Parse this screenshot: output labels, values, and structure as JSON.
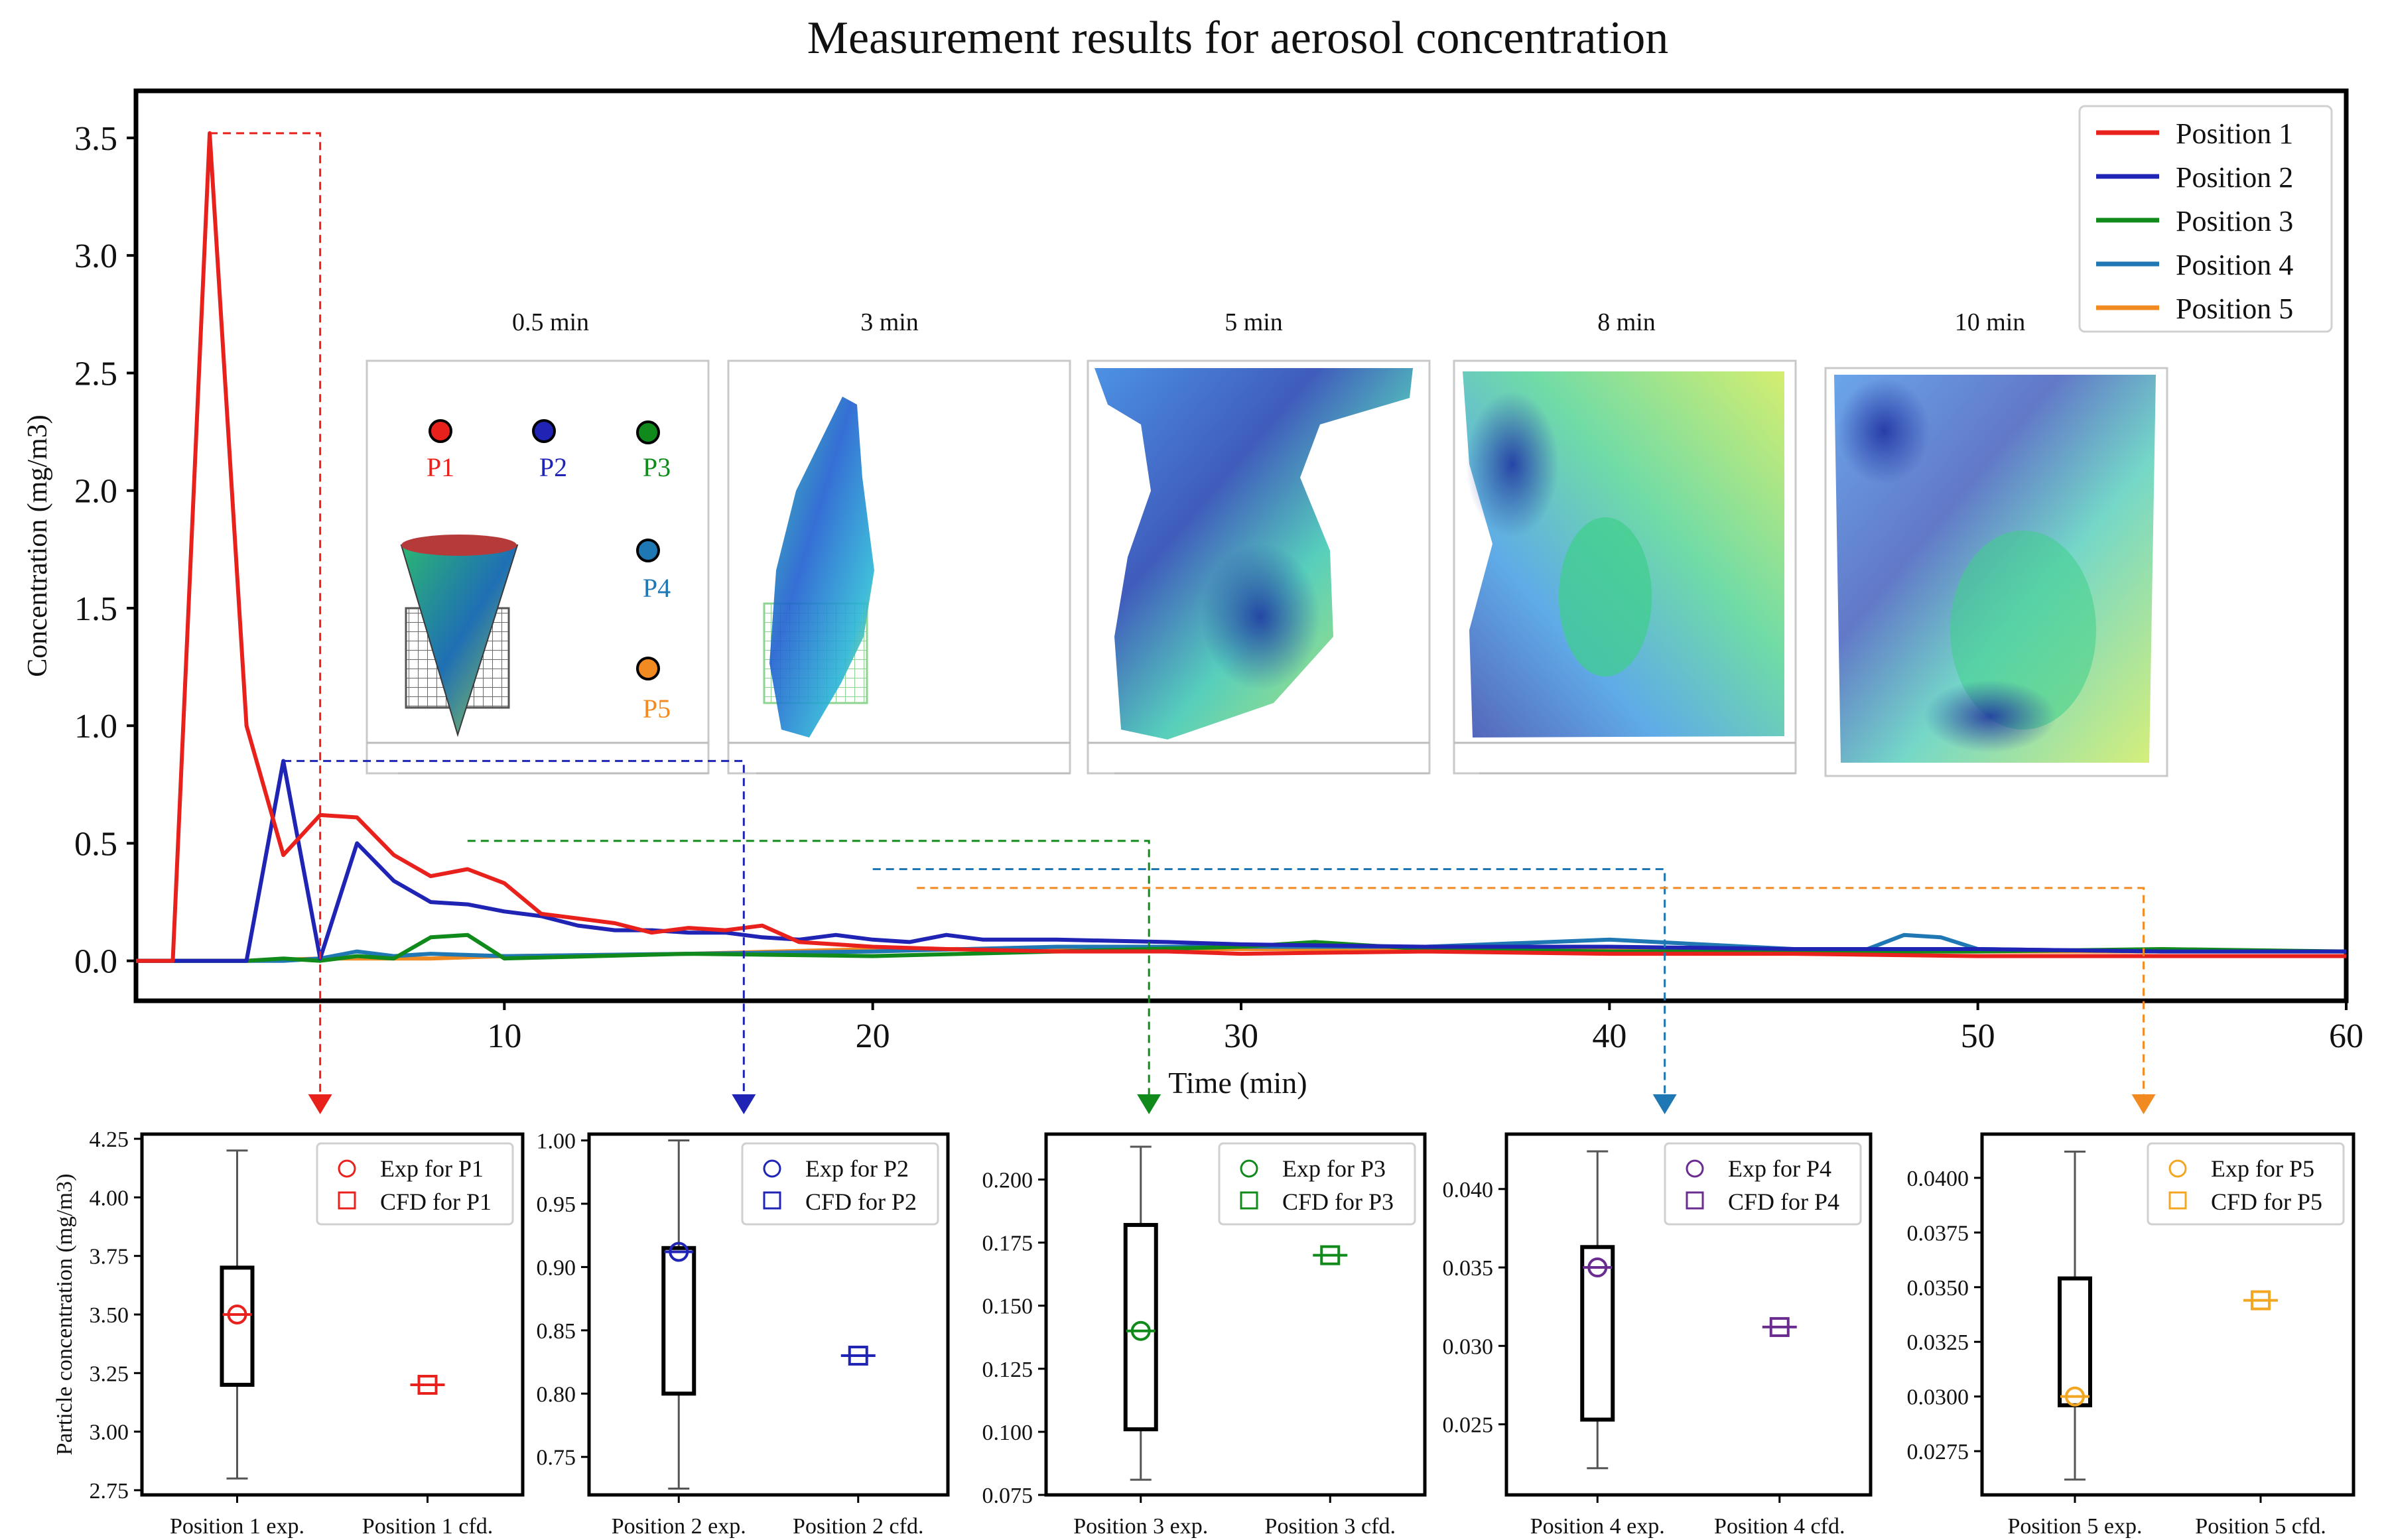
{
  "chart_data": [
    {
      "type": "line",
      "title": "Measurement results for aerosol concentration",
      "xlabel": "Time (min)",
      "ylabel": "Concentration (mg/m3)",
      "xlim": [
        0,
        60
      ],
      "ylim": [
        -0.17,
        3.7
      ],
      "xticks": [
        10,
        20,
        30,
        40,
        50,
        60
      ],
      "yticks": [
        0.0,
        0.5,
        1.0,
        1.5,
        2.0,
        2.5,
        3.0,
        3.5
      ],
      "legend_position": "top-right",
      "series": [
        {
          "name": "Position 1",
          "color": "#e8211d",
          "x": [
            0,
            0.5,
            1,
            2,
            3,
            4,
            5,
            6,
            7,
            8,
            9,
            10,
            11,
            12,
            13,
            14,
            15,
            16,
            17,
            18,
            19,
            20,
            22,
            25,
            28,
            30,
            35,
            40,
            45,
            50,
            55,
            60
          ],
          "y": [
            0,
            0,
            0,
            3.52,
            1.0,
            0.45,
            0.62,
            0.61,
            0.45,
            0.36,
            0.39,
            0.33,
            0.2,
            0.18,
            0.16,
            0.12,
            0.14,
            0.13,
            0.15,
            0.08,
            0.07,
            0.06,
            0.05,
            0.04,
            0.04,
            0.03,
            0.04,
            0.03,
            0.03,
            0.02,
            0.02,
            0.02
          ]
        },
        {
          "name": "Position 2",
          "color": "#1f24b4",
          "x": [
            0,
            1,
            2,
            3,
            4,
            5,
            6,
            7,
            8,
            9,
            10,
            11,
            12,
            13,
            14,
            15,
            16,
            17,
            18,
            19,
            20,
            21,
            22,
            23,
            25,
            28,
            30,
            35,
            40,
            45,
            50,
            55,
            60
          ],
          "y": [
            0,
            0,
            0,
            0,
            0.85,
            0.01,
            0.5,
            0.34,
            0.25,
            0.24,
            0.21,
            0.19,
            0.15,
            0.13,
            0.13,
            0.12,
            0.12,
            0.1,
            0.09,
            0.11,
            0.09,
            0.08,
            0.11,
            0.09,
            0.09,
            0.08,
            0.07,
            0.06,
            0.06,
            0.05,
            0.05,
            0.04,
            0.04
          ]
        },
        {
          "name": "Position 3",
          "color": "#118a1c",
          "x": [
            0,
            3,
            4,
            5,
            6,
            7,
            8,
            9,
            10,
            15,
            20,
            25,
            30,
            32,
            35,
            40,
            45,
            50,
            55,
            60
          ],
          "y": [
            0,
            0,
            0.01,
            0,
            0.02,
            0.01,
            0.1,
            0.11,
            0.01,
            0.03,
            0.02,
            0.04,
            0.06,
            0.08,
            0.05,
            0.04,
            0.04,
            0.04,
            0.05,
            0.04
          ]
        },
        {
          "name": "Position 4",
          "color": "#1f77b4",
          "x": [
            0,
            4,
            5,
            6,
            7,
            8,
            10,
            15,
            20,
            25,
            30,
            35,
            40,
            45,
            47,
            48,
            49,
            50,
            55,
            60
          ],
          "y": [
            0,
            0,
            0.01,
            0.04,
            0.02,
            0.03,
            0.02,
            0.03,
            0.04,
            0.06,
            0.06,
            0.06,
            0.09,
            0.05,
            0.05,
            0.11,
            0.1,
            0.05,
            0.04,
            0.04
          ]
        },
        {
          "name": "Position 5",
          "color": "#f28a22",
          "x": [
            0,
            3,
            5,
            8,
            10,
            15,
            20,
            25,
            30,
            35,
            40,
            45,
            50,
            55,
            60
          ],
          "y": [
            0,
            0,
            0.01,
            0.01,
            0.02,
            0.03,
            0.05,
            0.05,
            0.05,
            0.05,
            0.05,
            0.04,
            0.04,
            0.04,
            0.04
          ]
        }
      ]
    },
    {
      "type": "box",
      "ylabel": "Particle concentration (mg/m3)",
      "color": "#e8211d",
      "categories": [
        "Position 1 exp.",
        "Position 1 cfd."
      ],
      "legend": [
        "Exp for P1",
        "CFD for P1"
      ],
      "ylim": [
        2.73,
        4.27
      ],
      "yticks": [
        "2.75",
        "3.00",
        "3.25",
        "3.50",
        "3.75",
        "4.00",
        "4.25"
      ],
      "box": {
        "whisker_low": 2.8,
        "q1": 3.2,
        "q3": 3.7,
        "whisker_high": 4.2
      },
      "exp_value": 3.5,
      "cfd_value": 3.2
    },
    {
      "type": "box",
      "color": "#1f24b4",
      "categories": [
        "Position 2 exp.",
        "Position 2 cfd."
      ],
      "legend": [
        "Exp for P2",
        "CFD for P2"
      ],
      "ylim": [
        0.72,
        1.005
      ],
      "yticks": [
        "0.75",
        "0.80",
        "0.85",
        "0.90",
        "0.95",
        "1.00"
      ],
      "box": {
        "whisker_low": 0.725,
        "q1": 0.8,
        "q3": 0.915,
        "whisker_high": 1.0
      },
      "exp_value": 0.912,
      "cfd_value": 0.83
    },
    {
      "type": "box",
      "color": "#118a1c",
      "categories": [
        "Position 3 exp.",
        "Position 3 cfd."
      ],
      "legend": [
        "Exp for P3",
        "CFD for P3"
      ],
      "ylim": [
        0.075,
        0.218
      ],
      "yticks": [
        "0.075",
        "0.100",
        "0.125",
        "0.150",
        "0.175",
        "0.200"
      ],
      "box": {
        "whisker_low": 0.081,
        "q1": 0.101,
        "q3": 0.182,
        "whisker_high": 0.213
      },
      "exp_value": 0.14,
      "cfd_value": 0.17
    },
    {
      "type": "box",
      "color": "#6a2c8f",
      "categories": [
        "Position 4 exp.",
        "Position 4 cfd."
      ],
      "legend": [
        "Exp for P4",
        "CFD for P4"
      ],
      "ylim": [
        0.0205,
        0.0435
      ],
      "yticks": [
        "0.025",
        "0.030",
        "0.035",
        "0.040"
      ],
      "box": {
        "whisker_low": 0.0222,
        "q1": 0.0253,
        "q3": 0.0363,
        "whisker_high": 0.0424
      },
      "exp_value": 0.035,
      "cfd_value": 0.0312
    },
    {
      "type": "box",
      "color": "#f2a621",
      "categories": [
        "Position 5 exp.",
        "Position 5 cfd."
      ],
      "legend": [
        "Exp for P5",
        "CFD for P5"
      ],
      "ylim": [
        0.0255,
        0.042
      ],
      "yticks": [
        "0.0275",
        "0.0300",
        "0.0325",
        "0.0350",
        "0.0375",
        "0.0400"
      ],
      "box": {
        "whisker_low": 0.0262,
        "q1": 0.0296,
        "q3": 0.0354,
        "whisker_high": 0.0412
      },
      "exp_value": 0.03,
      "cfd_value": 0.0344
    }
  ],
  "snapshots": [
    "0.5 min",
    "3 min",
    "5 min",
    "8 min",
    "10 min"
  ],
  "sensor_labels": [
    "P1",
    "P2",
    "P3",
    "P4",
    "P5"
  ],
  "sensor_colors": [
    "#e8211d",
    "#1f24b4",
    "#118a1c",
    "#1f77b4",
    "#f28a22"
  ]
}
